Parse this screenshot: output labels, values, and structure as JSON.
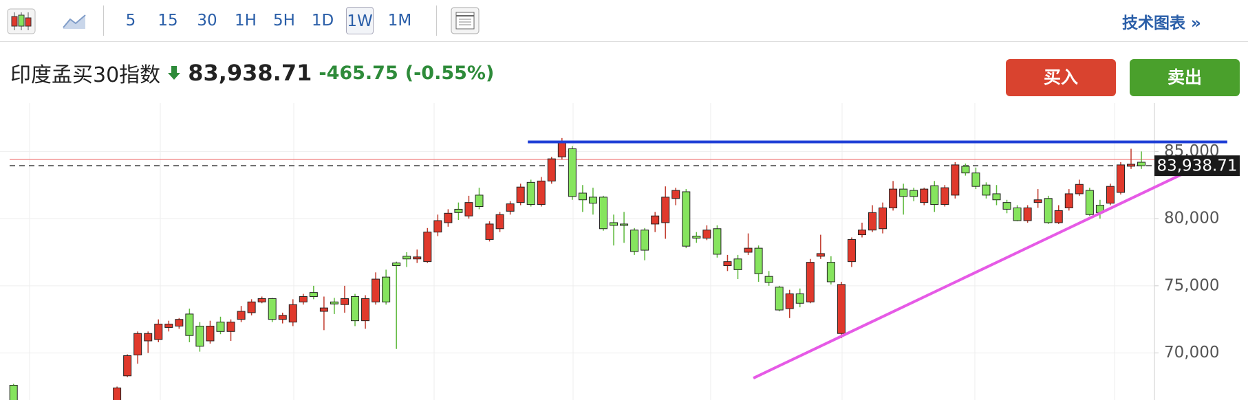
{
  "toolbar": {
    "intervals": [
      "5",
      "15",
      "30",
      "1H",
      "5H",
      "1D",
      "1W",
      "1M"
    ],
    "selected": 6,
    "link": "技术图表 »"
  },
  "header": {
    "title": "印度孟买30指数",
    "change": "-465.75",
    "change_percent": "(-0.55%)",
    "buy": "买入",
    "sell": "卖出"
  },
  "chart_data": {
    "type": "candlestick",
    "open": [
      67600,
      null,
      null,
      null,
      null,
      null,
      null,
      null,
      null,
      null,
      66000,
      68300,
      69850,
      70900,
      71000,
      71900,
      72000,
      72900,
      72000,
      70900,
      72300,
      71600,
      72500,
      73000,
      73800,
      74050,
      72500,
      72300,
      73800,
      74500,
      73100,
      73800,
      73600,
      74200,
      72400,
      73800,
      75650,
      76700,
      77200,
      77000,
      76800,
      79000,
      79700,
      80700,
      80200,
      81750,
      78450,
      79250,
      80550,
      81200,
      82700,
      81050,
      82800,
      84600,
      85200,
      81900,
      81600,
      81600,
      79700,
      79600,
      79150,
      79150,
      79600,
      79700,
      81500,
      82000,
      78700,
      78550,
      79250,
      76500,
      77000,
      77500,
      77800,
      75700,
      74900,
      73300,
      74400,
      73800,
      77200,
      76750,
      71450,
      76800,
      78800,
      79150,
      79250,
      80800,
      82200,
      82100,
      81200,
      82450,
      81050,
      81750,
      83900,
      83400,
      82500,
      81850,
      81200,
      80800,
      79850,
      81200,
      81500,
      79700,
      80800,
      81850,
      82100,
      81000,
      81150,
      81950,
      83900,
      84200
    ],
    "high": [
      67700,
      null,
      null,
      null,
      null,
      null,
      null,
      null,
      null,
      null,
      67500,
      69900,
      71600,
      71600,
      72500,
      72400,
      72600,
      73300,
      72300,
      72400,
      72700,
      72500,
      73500,
      74000,
      74200,
      74100,
      73000,
      74000,
      74400,
      75000,
      74200,
      74100,
      75000,
      74400,
      74300,
      76000,
      76200,
      76800,
      77500,
      77700,
      79300,
      80300,
      80700,
      81200,
      81700,
      82300,
      79800,
      80500,
      81300,
      82600,
      82900,
      83100,
      84600,
      86000,
      85400,
      82500,
      82300,
      81700,
      80300,
      80500,
      79300,
      79300,
      80500,
      82400,
      82300,
      82200,
      79000,
      79500,
      79500,
      77300,
      77300,
      78900,
      78000,
      76100,
      75000,
      74700,
      74800,
      77000,
      78800,
      77200,
      75300,
      78600,
      79700,
      81000,
      81200,
      82800,
      82600,
      82300,
      82300,
      82800,
      82500,
      84200,
      84100,
      83800,
      82700,
      82500,
      81400,
      81000,
      81000,
      82200,
      81700,
      81000,
      82200,
      82900,
      82300,
      81400,
      82600,
      84200,
      85200,
      85000
    ],
    "low": [
      65800,
      null,
      null,
      null,
      null,
      null,
      null,
      null,
      null,
      null,
      65800,
      68200,
      69200,
      70000,
      70800,
      71600,
      71800,
      70800,
      70100,
      70700,
      71400,
      70900,
      72300,
      72800,
      73700,
      72300,
      72200,
      72000,
      73600,
      74000,
      71700,
      72900,
      73000,
      72000,
      71800,
      73600,
      73600,
      70300,
      76400,
      76700,
      76700,
      78700,
      79400,
      79900,
      80000,
      80700,
      78300,
      79000,
      80300,
      81000,
      80900,
      80900,
      82600,
      84400,
      81400,
      80500,
      80300,
      79100,
      78000,
      78200,
      77300,
      76900,
      79000,
      78500,
      81000,
      77800,
      78200,
      78400,
      77100,
      76100,
      75500,
      77300,
      75300,
      75000,
      73100,
      72600,
      73400,
      73700,
      77000,
      75100,
      71100,
      76400,
      78600,
      79000,
      78900,
      80600,
      80300,
      81300,
      81000,
      80500,
      80900,
      81500,
      83200,
      82200,
      81500,
      81000,
      80400,
      79800,
      79700,
      80800,
      79600,
      79600,
      80600,
      81700,
      80200,
      80000,
      81000,
      81800,
      83700,
      83700
    ],
    "close": [
      66000,
      null,
      null,
      null,
      null,
      null,
      null,
      null,
      null,
      null,
      67400,
      69800,
      71450,
      71450,
      72150,
      72150,
      72500,
      71300,
      70500,
      72000,
      71600,
      72300,
      73100,
      73800,
      74050,
      72500,
      72800,
      73600,
      74200,
      74200,
      73350,
      73650,
      74050,
      72400,
      74050,
      75500,
      73800,
      76500,
      77000,
      77150,
      79000,
      79850,
      80400,
      80450,
      81200,
      80900,
      79600,
      80300,
      81100,
      82350,
      81050,
      82800,
      84450,
      85650,
      81650,
      81400,
      81150,
      79250,
      79500,
      79500,
      77550,
      77650,
      80200,
      81600,
      82100,
      77950,
      78550,
      79150,
      77350,
      76800,
      76200,
      77800,
      75900,
      75250,
      73200,
      74400,
      73700,
      76750,
      77400,
      75300,
      75100,
      78450,
      79150,
      80450,
      80800,
      82200,
      81650,
      81650,
      82200,
      81050,
      82300,
      84000,
      83400,
      82400,
      81750,
      81400,
      80700,
      79850,
      80800,
      81400,
      79700,
      80600,
      81850,
      82550,
      80300,
      80450,
      82400,
      84000,
      84050,
      83938.71
    ],
    "up_color": "#e0392c",
    "down_color": "#86e45e",
    "ylim": [
      66500,
      88600
    ],
    "yticks": [
      {
        "value": 70000,
        "label": "70,000"
      },
      {
        "value": 75000,
        "label": "75,000"
      },
      {
        "value": 80000,
        "label": "80,000"
      },
      {
        "value": 85000,
        "label": "85,000"
      }
    ],
    "grid": true,
    "last_price": {
      "value": 83938.71,
      "label": "83,938.71"
    },
    "prev_close": 84404.46,
    "prev_close_color": "#f08080",
    "trendlines": [
      {
        "color": "#1f3fd6",
        "x": [
          49.7,
          117.3
        ],
        "y": [
          85710,
          85710
        ]
      },
      {
        "color": "#e65ae6",
        "x": [
          71.5,
          114.8
        ],
        "y": [
          68130,
          83990
        ]
      }
    ]
  }
}
